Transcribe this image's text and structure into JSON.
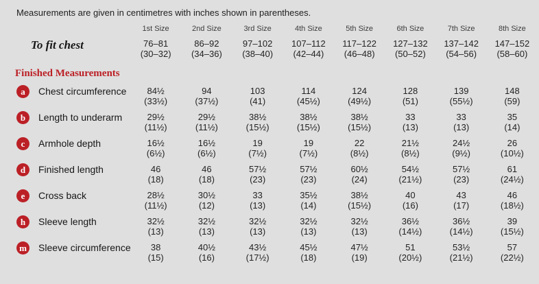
{
  "intro": "Measurements are given in centimetres with inches shown in parentheses.",
  "colors": {
    "accent_red": "#bb2026",
    "background": "#dfdfdf"
  },
  "table": {
    "size_headers": [
      "1st Size",
      "2nd Size",
      "3rd Size",
      "4th Size",
      "5th Size",
      "6th Size",
      "7th Size",
      "8th Size"
    ],
    "to_fit_chest": {
      "label": "To fit chest",
      "cm": [
        "76–81",
        "86–92",
        "97–102",
        "107–112",
        "117–122",
        "127–132",
        "137–142",
        "147–152"
      ],
      "in": [
        "(30–32)",
        "(34–36)",
        "(38–40)",
        "(42–44)",
        "(46–48)",
        "(50–52)",
        "(54–56)",
        "(58–60)"
      ]
    },
    "section_heading": "Finished Measurements",
    "rows": [
      {
        "key": "a",
        "label": "Chest circumference",
        "cm": [
          "84½",
          "94",
          "103",
          "114",
          "124",
          "128",
          "139",
          "148"
        ],
        "in": [
          "(33½)",
          "(37½)",
          "(41)",
          "(45½)",
          "(49½)",
          "(51)",
          "(55½)",
          "(59)"
        ]
      },
      {
        "key": "b",
        "label": "Length to underarm",
        "cm": [
          "29½",
          "29½",
          "38½",
          "38½",
          "38½",
          "33",
          "33",
          "35"
        ],
        "in": [
          "(11½)",
          "(11½)",
          "(15½)",
          "(15½)",
          "(15½)",
          "(13)",
          "(13)",
          "(14)"
        ]
      },
      {
        "key": "c",
        "label": "Armhole depth",
        "cm": [
          "16½",
          "16½",
          "19",
          "19",
          "22",
          "21½",
          "24½",
          "26"
        ],
        "in": [
          "(6½)",
          "(6½)",
          "(7½)",
          "(7½)",
          "(8½)",
          "(8½)",
          "(9½)",
          "(10½)"
        ]
      },
      {
        "key": "d",
        "label": "Finished length",
        "cm": [
          "46",
          "46",
          "57½",
          "57½",
          "60½",
          "54½",
          "57½",
          "61"
        ],
        "in": [
          "(18)",
          "(18)",
          "(23)",
          "(23)",
          "(24)",
          "(21½)",
          "(23)",
          "(24½)"
        ]
      },
      {
        "key": "e",
        "label": "Cross back",
        "cm": [
          "28½",
          "30½",
          "33",
          "35½",
          "38½",
          "40",
          "43",
          "46"
        ],
        "in": [
          "(11½)",
          "(12)",
          "(13)",
          "(14)",
          "(15½)",
          "(16)",
          "(17)",
          "(18½)"
        ]
      },
      {
        "key": "h",
        "label": "Sleeve length",
        "cm": [
          "32½",
          "32½",
          "32½",
          "32½",
          "32½",
          "36½",
          "36½",
          "39"
        ],
        "in": [
          "(13)",
          "(13)",
          "(13)",
          "(13)",
          "(13)",
          "(14½)",
          "(14½)",
          "(15½)"
        ]
      },
      {
        "key": "m",
        "label": "Sleeve circumference",
        "cm": [
          "38",
          "40½",
          "43½",
          "45½",
          "47½",
          "51",
          "53½",
          "57"
        ],
        "in": [
          "(15)",
          "(16)",
          "(17½)",
          "(18)",
          "(19)",
          "(20½)",
          "(21½)",
          "(22½)"
        ]
      }
    ]
  }
}
